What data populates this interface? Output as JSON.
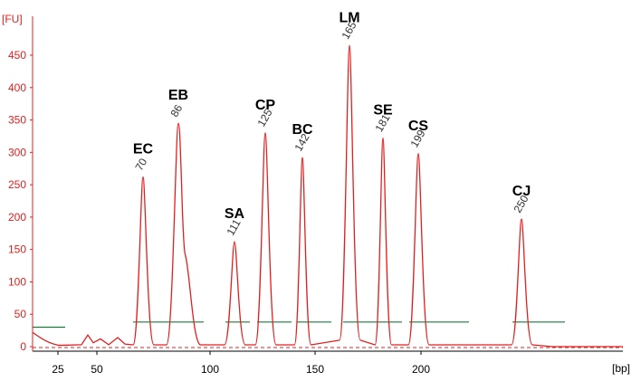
{
  "chart_data": {
    "type": "line",
    "y_unit": "[FU]",
    "x_unit": "[bp]",
    "x_ticks": [
      {
        "label": "25",
        "bp": 25
      },
      {
        "label": "50",
        "bp": 50
      },
      {
        "label": "100",
        "bp": 100
      },
      {
        "label": "150",
        "bp": 150
      },
      {
        "label": "200",
        "bp": 200
      }
    ],
    "y_ticks": [
      0,
      50,
      100,
      150,
      200,
      250,
      300,
      350,
      400,
      450
    ],
    "ylim": [
      -5,
      470
    ],
    "line_color": "#e02020",
    "baseline_color": "#1a7a3a",
    "peaks": [
      {
        "name": "EC",
        "size": "70",
        "bp": 70,
        "height": 262
      },
      {
        "name": "EB",
        "size": "86",
        "bp": 86,
        "height": 345
      },
      {
        "name": "SA",
        "size": "111",
        "bp": 111,
        "height": 162
      },
      {
        "name": "CP",
        "size": "125",
        "bp": 125,
        "height": 330
      },
      {
        "name": "BC",
        "size": "142",
        "bp": 142,
        "height": 292
      },
      {
        "name": "LM",
        "size": "165",
        "bp": 165,
        "height": 465
      },
      {
        "name": "SE",
        "size": "181",
        "bp": 181,
        "height": 322
      },
      {
        "name": "CS",
        "size": "199",
        "bp": 199,
        "height": 298
      },
      {
        "name": "CJ",
        "size": "250",
        "bp": 250,
        "height": 197
      }
    ]
  }
}
